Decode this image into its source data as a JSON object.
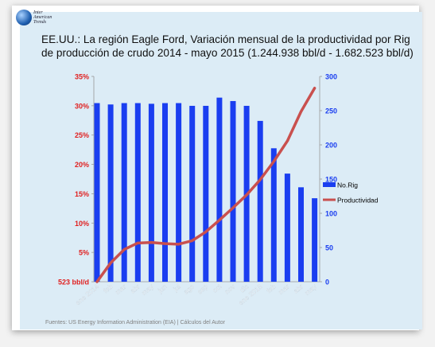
{
  "logo": {
    "name_line1": "Inter",
    "name_line2": "American",
    "name_line3": "Trends"
  },
  "title": "EE.UU.: La región Eagle Ford, Variación mensual de la productividad por Rig de producción de crudo 2014 - mayo 2015 (1.244.938 bbl/d - 1.682.523 bbl/d)",
  "footer": "Fuentes: US Energy Information Administration (EIA) | Cálculos del Autor",
  "colors": {
    "bars": "#1a3ef0",
    "line": "#c9504e",
    "left_axis_text": "#e02020",
    "right_axis_text": "#1a3ef0",
    "panel": "#dcecf6"
  },
  "chart_data": {
    "type": "bar",
    "categories": [
      "ene 2014",
      "feb",
      "mar",
      "abr",
      "may",
      "jun",
      "jul",
      "ago",
      "sep",
      "oct",
      "nov",
      "dic",
      "ene 2015",
      "feb",
      "mar",
      "abr",
      "may"
    ],
    "series": [
      {
        "name": "No.Rig",
        "type": "bar",
        "axis": "right",
        "values": [
          261,
          259,
          261,
          261,
          260,
          261,
          261,
          257,
          257,
          269,
          264,
          257,
          235,
          195,
          158,
          138,
          122
        ]
      },
      {
        "name": "Productividad",
        "type": "line",
        "axis": "left",
        "values": [
          0.0,
          3.2,
          5.5,
          6.6,
          6.7,
          6.5,
          6.4,
          7.0,
          8.5,
          10.5,
          12.6,
          14.8,
          17.4,
          20.5,
          24.0,
          29.0,
          33.0
        ]
      }
    ],
    "y_left": {
      "ticks": [
        0,
        5,
        10,
        15,
        20,
        25,
        30,
        35
      ],
      "labels": [
        "523 bbl/d",
        "5%",
        "10%",
        "15%",
        "20%",
        "25%",
        "30%",
        "35%"
      ],
      "range": [
        0,
        35
      ]
    },
    "y_right": {
      "ticks": [
        0,
        50,
        100,
        150,
        200,
        250,
        300
      ],
      "labels": [
        "0",
        "50",
        "100",
        "150",
        "200",
        "250",
        "300"
      ],
      "range": [
        0,
        300
      ]
    },
    "legend_position": "right",
    "grid": false
  }
}
